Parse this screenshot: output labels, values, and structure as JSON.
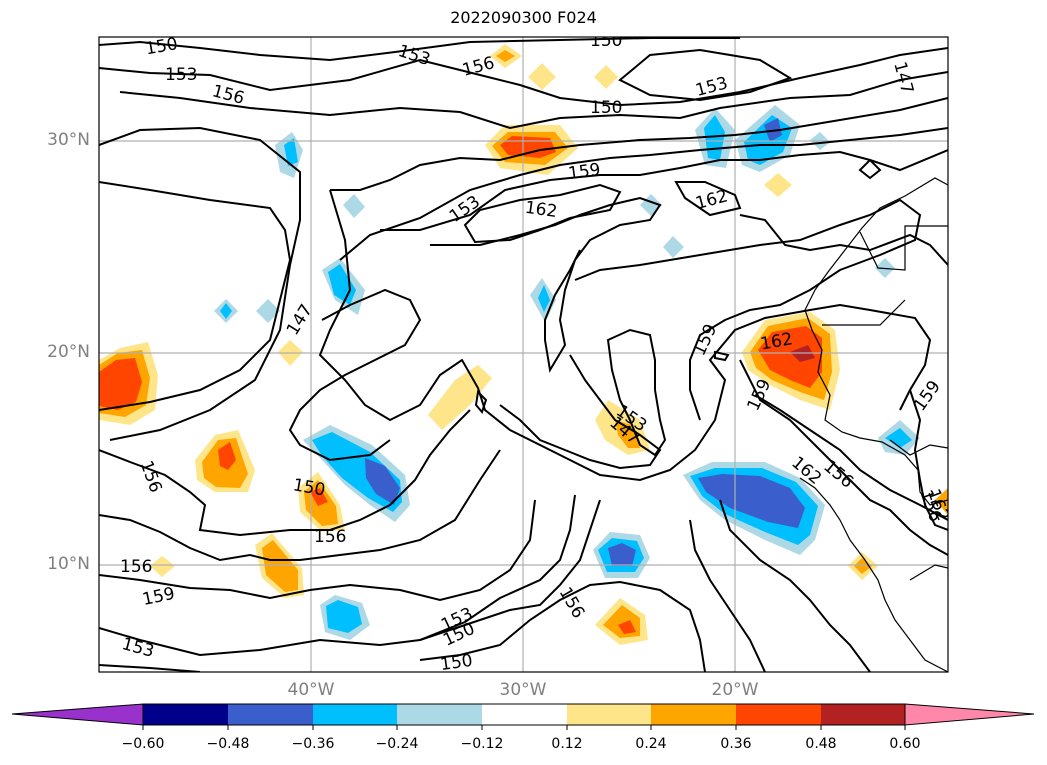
{
  "title": "2022090300 F024",
  "latitude_labels": [
    "30°N",
    "20°N",
    "10°N"
  ],
  "longitude_labels": [
    "40°W",
    "30°W",
    "20°W"
  ],
  "contour_labels": [
    "150",
    "153",
    "156",
    "153",
    "156",
    "150",
    "153",
    "147",
    "150",
    "159",
    "162",
    "153",
    "162",
    "147",
    "159",
    "162",
    "159",
    "159",
    "153",
    "150",
    "156",
    "156",
    "162",
    "156",
    "156",
    "150",
    "156",
    "159",
    "153",
    "153",
    "150",
    "147",
    "156",
    "162"
  ],
  "colorbar": {
    "ticks": [
      "−0.60",
      "−0.48",
      "−0.36",
      "−0.24",
      "−0.12",
      "0.12",
      "0.24",
      "0.36",
      "0.48",
      "0.60"
    ],
    "colors": {
      "under": "#9932cc",
      "c1": "#00008b",
      "c2": "#3a5fcd",
      "c3": "#00bfff",
      "c4": "#add8e6",
      "c5": "#ffffff",
      "c6": "#ffe58a",
      "c7": "#ffa500",
      "c8": "#ff4500",
      "c9": "#b22222",
      "over": "#ff88aa"
    }
  }
}
